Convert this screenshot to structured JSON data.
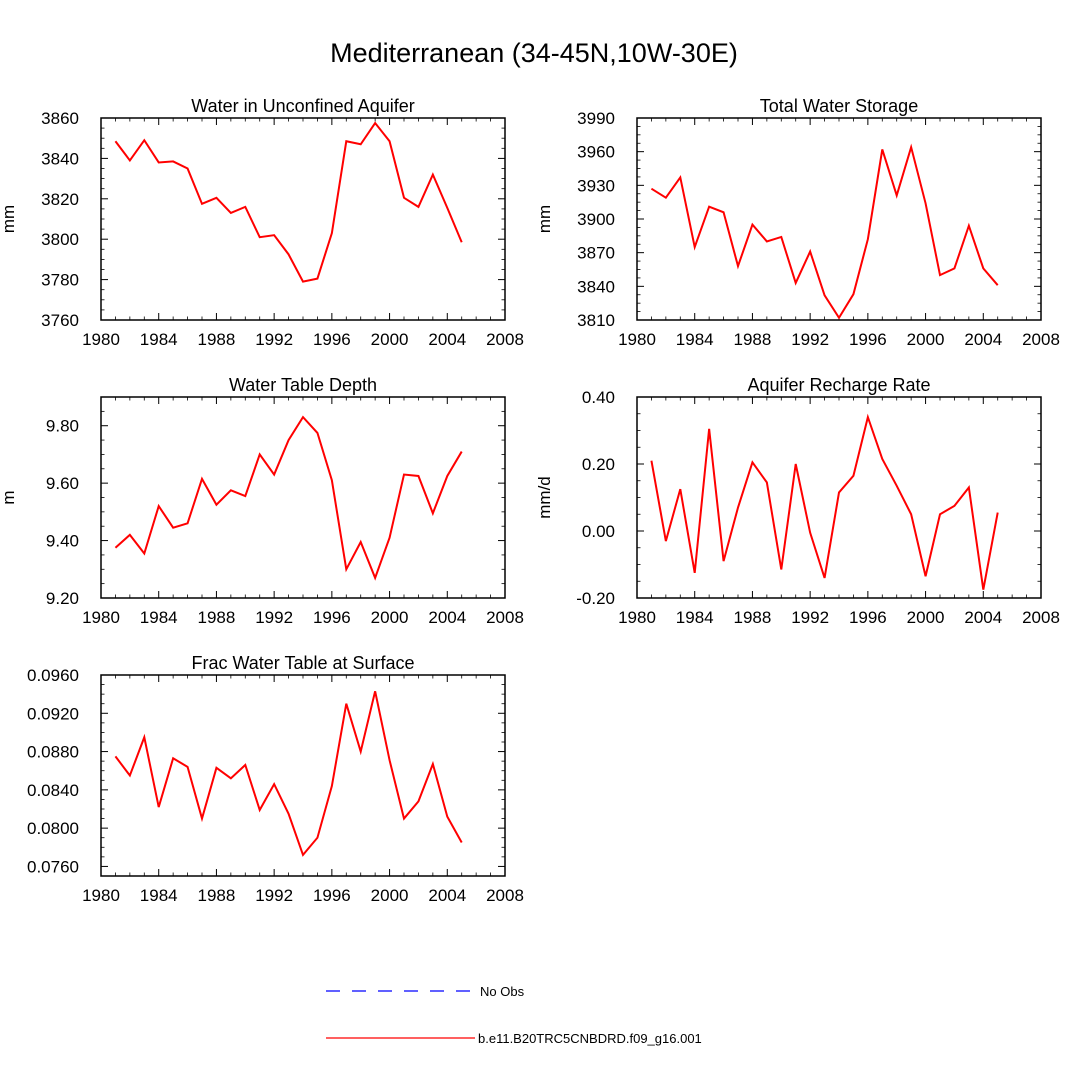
{
  "title": "Mediterranean (34-45N,10W-30E)",
  "colors": {
    "model": "#ff0000",
    "obs": "#0000ff",
    "axis": "#000000"
  },
  "legend": {
    "entries": [
      {
        "label": "No Obs",
        "style": "dashed",
        "color": "#0000ff"
      },
      {
        "label": "b.e11.B20TRC5CNBDRD.f09_g16.001",
        "style": "solid",
        "color": "#ff0000"
      }
    ]
  },
  "chart_data": [
    {
      "type": "line",
      "title": "Water in Unconfined Aquifer",
      "xlabel": "",
      "ylabel": "mm",
      "xlim": [
        1980,
        2008
      ],
      "ylim": [
        3760,
        3860
      ],
      "xticks": [
        1980,
        1984,
        1988,
        1992,
        1996,
        2000,
        2004,
        2008
      ],
      "xtick_labels": [
        "1980",
        "1984",
        "1988",
        "1992",
        "1996",
        "2000",
        "2004",
        "2008"
      ],
      "yticks": [
        3760,
        3780,
        3800,
        3820,
        3840,
        3860
      ],
      "ytick_labels": [
        "3760",
        "3780",
        "3800",
        "3820",
        "3840",
        "3860"
      ],
      "x": [
        1981,
        1982,
        1983,
        1984,
        1985,
        1986,
        1987,
        1988,
        1989,
        1990,
        1991,
        1992,
        1993,
        1994,
        1995,
        1996,
        1997,
        1998,
        1999,
        2000,
        2001,
        2002,
        2003,
        2004,
        2005
      ],
      "series": [
        {
          "name": "b.e11.B20TRC5CNBDRD.f09_g16.001",
          "values": [
            3848.5,
            3839,
            3849,
            3838,
            3838.5,
            3835,
            3817.5,
            3820.5,
            3813,
            3816,
            3801,
            3802,
            3792.5,
            3779,
            3780.5,
            3803,
            3848.5,
            3847,
            3857.5,
            3848.5,
            3820.5,
            3816,
            3832,
            3815.5,
            3798.5
          ]
        }
      ]
    },
    {
      "type": "line",
      "title": "Total Water Storage",
      "xlabel": "",
      "ylabel": "mm",
      "xlim": [
        1980,
        2008
      ],
      "ylim": [
        3810,
        3990
      ],
      "xticks": [
        1980,
        1984,
        1988,
        1992,
        1996,
        2000,
        2004,
        2008
      ],
      "xtick_labels": [
        "1980",
        "1984",
        "1988",
        "1992",
        "1996",
        "2000",
        "2004",
        "2008"
      ],
      "yticks": [
        3810,
        3840,
        3870,
        3900,
        3930,
        3960,
        3990
      ],
      "ytick_labels": [
        "3810",
        "3840",
        "3870",
        "3900",
        "3930",
        "3960",
        "3990"
      ],
      "x": [
        1981,
        1982,
        1983,
        1984,
        1985,
        1986,
        1987,
        1988,
        1989,
        1990,
        1991,
        1992,
        1993,
        1994,
        1995,
        1996,
        1997,
        1998,
        1999,
        2000,
        2001,
        2002,
        2003,
        2004,
        2005
      ],
      "series": [
        {
          "name": "b.e11.B20TRC5CNBDRD.f09_g16.001",
          "values": [
            3927,
            3919,
            3937,
            3875,
            3911,
            3906,
            3858,
            3895,
            3880,
            3884,
            3843,
            3871,
            3832,
            3812,
            3833,
            3882,
            3962,
            3921,
            3964,
            3914,
            3850,
            3856,
            3894,
            3856,
            3841
          ]
        }
      ]
    },
    {
      "type": "line",
      "title": "Water Table Depth",
      "xlabel": "",
      "ylabel": "m",
      "xlim": [
        1980,
        2008
      ],
      "ylim": [
        9.2,
        9.9
      ],
      "xticks": [
        1980,
        1984,
        1988,
        1992,
        1996,
        2000,
        2004,
        2008
      ],
      "xtick_labels": [
        "1980",
        "1984",
        "1988",
        "1992",
        "1996",
        "2000",
        "2004",
        "2008"
      ],
      "yticks": [
        9.2,
        9.4,
        9.6,
        9.8
      ],
      "ytick_labels": [
        "9.20",
        "9.40",
        "9.60",
        "9.80"
      ],
      "x": [
        1981,
        1982,
        1983,
        1984,
        1985,
        1986,
        1987,
        1988,
        1989,
        1990,
        1991,
        1992,
        1993,
        1994,
        1995,
        1996,
        1997,
        1998,
        1999,
        2000,
        2001,
        2002,
        2003,
        2004,
        2005
      ],
      "series": [
        {
          "name": "b.e11.B20TRC5CNBDRD.f09_g16.001",
          "values": [
            9.375,
            9.42,
            9.355,
            9.52,
            9.445,
            9.46,
            9.615,
            9.525,
            9.575,
            9.555,
            9.7,
            9.63,
            9.75,
            9.83,
            9.775,
            9.61,
            9.3,
            9.395,
            9.27,
            9.41,
            9.63,
            9.625,
            9.495,
            9.625,
            9.71
          ]
        }
      ]
    },
    {
      "type": "line",
      "title": "Aquifer Recharge Rate",
      "xlabel": "",
      "ylabel": "mm/d",
      "xlim": [
        1980,
        2008
      ],
      "ylim": [
        -0.2,
        0.4
      ],
      "xticks": [
        1980,
        1984,
        1988,
        1992,
        1996,
        2000,
        2004,
        2008
      ],
      "xtick_labels": [
        "1980",
        "1984",
        "1988",
        "1992",
        "1996",
        "2000",
        "2004",
        "2008"
      ],
      "yticks": [
        -0.2,
        0.0,
        0.2,
        0.4
      ],
      "ytick_labels": [
        "-0.20",
        "0.00",
        "0.20",
        "0.40"
      ],
      "x": [
        1981,
        1982,
        1983,
        1984,
        1985,
        1986,
        1987,
        1988,
        1989,
        1990,
        1991,
        1992,
        1993,
        1994,
        1995,
        1996,
        1997,
        1998,
        1999,
        2000,
        2001,
        2002,
        2003,
        2004,
        2005
      ],
      "series": [
        {
          "name": "b.e11.B20TRC5CNBDRD.f09_g16.001",
          "values": [
            0.21,
            -0.03,
            0.125,
            -0.125,
            0.305,
            -0.09,
            0.07,
            0.205,
            0.145,
            -0.115,
            0.2,
            -0.005,
            -0.14,
            0.115,
            0.165,
            0.34,
            0.215,
            0.135,
            0.05,
            -0.135,
            0.05,
            0.075,
            0.13,
            -0.175,
            0.055
          ]
        }
      ]
    },
    {
      "type": "line",
      "title": "Frac Water Table at Surface",
      "xlabel": "",
      "ylabel": "",
      "xlim": [
        1980,
        2008
      ],
      "ylim": [
        0.075,
        0.096
      ],
      "xticks": [
        1980,
        1984,
        1988,
        1992,
        1996,
        2000,
        2004,
        2008
      ],
      "xtick_labels": [
        "1980",
        "1984",
        "1988",
        "1992",
        "1996",
        "2000",
        "2004",
        "2008"
      ],
      "yticks": [
        0.076,
        0.08,
        0.084,
        0.088,
        0.092,
        0.096
      ],
      "ytick_labels": [
        "0.0760",
        "0.0800",
        "0.0840",
        "0.0880",
        "0.0920",
        "0.0960"
      ],
      "x": [
        1981,
        1982,
        1983,
        1984,
        1985,
        1986,
        1987,
        1988,
        1989,
        1990,
        1991,
        1992,
        1993,
        1994,
        1995,
        1996,
        1997,
        1998,
        1999,
        2000,
        2001,
        2002,
        2003,
        2004,
        2005
      ],
      "series": [
        {
          "name": "b.e11.B20TRC5CNBDRD.f09_g16.001",
          "values": [
            0.0875,
            0.0855,
            0.0895,
            0.0822,
            0.0873,
            0.0864,
            0.081,
            0.0863,
            0.0852,
            0.0866,
            0.0819,
            0.0846,
            0.0815,
            0.0772,
            0.079,
            0.0844,
            0.093,
            0.088,
            0.0943,
            0.0871,
            0.081,
            0.0828,
            0.0867,
            0.0812,
            0.0785
          ]
        }
      ]
    }
  ]
}
